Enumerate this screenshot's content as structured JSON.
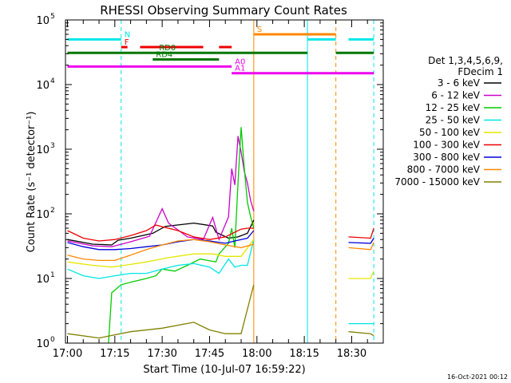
{
  "chart_data": {
    "type": "line",
    "title": "RHESSI Observing Summary Count Rates",
    "xlabel": "Start Time (10-Jul-07 16:59:22)",
    "ylabel": "Count Rate (s⁻¹ detector⁻¹)",
    "footer": "16-Oct-2021 00:12",
    "yscale": "log",
    "ylim": [
      1,
      100000
    ],
    "y_ticks": [
      {
        "value": 1,
        "base": "10",
        "exp": "0"
      },
      {
        "value": 10,
        "base": "10",
        "exp": "1"
      },
      {
        "value": 100,
        "base": "10",
        "exp": "2"
      },
      {
        "value": 1000,
        "base": "10",
        "exp": "3"
      },
      {
        "value": 10000,
        "base": "10",
        "exp": "4"
      },
      {
        "value": 100000,
        "base": "10",
        "exp": "5"
      }
    ],
    "xlim": [
      "17:00",
      "18:40"
    ],
    "x_ticks": [
      "17:00",
      "17:15",
      "17:30",
      "17:45",
      "18:00",
      "18:15",
      "18:30"
    ],
    "legend": {
      "placement": "right",
      "header": [
        "Det 1,3,4,5,6,9,",
        "FDecim 1"
      ]
    },
    "series": [
      {
        "name": "3 - 6 keV",
        "color": "#000000",
        "points": [
          [
            "17:00",
            40
          ],
          [
            "17:08",
            34
          ],
          [
            "17:14",
            33
          ],
          [
            "17:16",
            39
          ],
          [
            "17:20",
            42
          ],
          [
            "17:27",
            50
          ],
          [
            "17:31",
            64
          ],
          [
            "17:40",
            72
          ],
          [
            "17:46",
            65
          ],
          [
            "17:47",
            52
          ],
          [
            "17:51",
            42
          ],
          [
            "17:54",
            44
          ],
          [
            "17:57",
            50
          ],
          [
            "17:59",
            80
          ]
        ]
      },
      {
        "name": "6 - 12 keV",
        "color": "#cc00cc",
        "points": [
          [
            "17:00",
            38
          ],
          [
            "17:08",
            32
          ],
          [
            "17:14",
            31
          ],
          [
            "17:20",
            37
          ],
          [
            "17:26",
            45
          ],
          [
            "17:30",
            120
          ],
          [
            "17:32",
            72
          ],
          [
            "17:38",
            44
          ],
          [
            "17:43",
            40
          ],
          [
            "17:46",
            88
          ],
          [
            "17:48",
            40
          ],
          [
            "17:51",
            90
          ],
          [
            "17:52",
            500
          ],
          [
            "17:53",
            280
          ],
          [
            "17:54",
            1600
          ],
          [
            "17:55",
            900
          ],
          [
            "17:56",
            450
          ],
          [
            "17:57",
            300
          ],
          [
            "17:58",
            160
          ],
          [
            "17:59",
            110
          ]
        ]
      },
      {
        "name": "12 - 25 keV",
        "color": "#00cc00",
        "points": [
          [
            "17:13",
            1
          ],
          [
            "17:14",
            6
          ],
          [
            "17:17",
            8
          ],
          [
            "17:21",
            9
          ],
          [
            "17:25",
            10
          ],
          [
            "17:28",
            11
          ],
          [
            "17:30",
            14
          ],
          [
            "17:34",
            13
          ],
          [
            "17:38",
            16
          ],
          [
            "17:42",
            20
          ],
          [
            "17:47",
            18
          ],
          [
            "17:48",
            24
          ],
          [
            "17:51",
            35
          ],
          [
            "17:52",
            60
          ],
          [
            "17:53",
            30
          ],
          [
            "17:54",
            300
          ],
          [
            "17:55",
            2200
          ],
          [
            "17:56",
            500
          ],
          [
            "17:57",
            150
          ],
          [
            "17:58",
            90
          ],
          [
            "17:59",
            60
          ]
        ]
      },
      {
        "name": "25 - 50 keV",
        "color": "#00e6e6",
        "points": [
          [
            "17:00",
            14
          ],
          [
            "17:05",
            11
          ],
          [
            "17:10",
            10
          ],
          [
            "17:15",
            11
          ],
          [
            "17:20",
            12
          ],
          [
            "17:25",
            12
          ],
          [
            "17:30",
            14
          ],
          [
            "17:35",
            16
          ],
          [
            "17:40",
            17
          ],
          [
            "17:45",
            15
          ],
          [
            "17:48",
            12
          ],
          [
            "17:51",
            20
          ],
          [
            "17:53",
            15
          ],
          [
            "17:55",
            16
          ],
          [
            "17:57",
            16
          ],
          [
            "17:59",
            40
          ]
        ]
      },
      {
        "name": "50 - 100 keV",
        "color": "#e6e600",
        "points": [
          [
            "17:00",
            18
          ],
          [
            "17:08",
            16
          ],
          [
            "17:14",
            15
          ],
          [
            "17:18",
            16
          ],
          [
            "17:25",
            18
          ],
          [
            "17:32",
            21
          ],
          [
            "17:40",
            24
          ],
          [
            "17:46",
            24
          ],
          [
            "17:50",
            22
          ],
          [
            "17:55",
            22
          ],
          [
            "17:59",
            40
          ]
        ]
      },
      {
        "name": "100 - 300 keV",
        "color": "#ee0000",
        "points": [
          [
            "17:00",
            55
          ],
          [
            "17:05",
            42
          ],
          [
            "17:10",
            38
          ],
          [
            "17:15",
            40
          ],
          [
            "17:20",
            46
          ],
          [
            "17:25",
            55
          ],
          [
            "17:28",
            67
          ],
          [
            "17:35",
            55
          ],
          [
            "17:40",
            44
          ],
          [
            "17:45",
            40
          ],
          [
            "17:50",
            44
          ],
          [
            "17:53",
            52
          ],
          [
            "17:55",
            58
          ],
          [
            "17:57",
            60
          ],
          [
            "17:59",
            60
          ]
        ]
      },
      {
        "name": "300 - 800 keV",
        "color": "#0000dd",
        "points": [
          [
            "17:00",
            36
          ],
          [
            "17:05",
            31
          ],
          [
            "17:10",
            28
          ],
          [
            "17:15",
            28
          ],
          [
            "17:20",
            29
          ],
          [
            "17:25",
            31
          ],
          [
            "17:30",
            33
          ],
          [
            "17:35",
            37
          ],
          [
            "17:40",
            40
          ],
          [
            "17:45",
            38
          ],
          [
            "17:50",
            35
          ],
          [
            "17:53",
            38
          ],
          [
            "17:55",
            40
          ],
          [
            "17:57",
            42
          ],
          [
            "17:59",
            55
          ]
        ]
      },
      {
        "name": "800 - 7000 keV",
        "color": "#ff8800",
        "points": [
          [
            "17:00",
            23
          ],
          [
            "17:05",
            20
          ],
          [
            "17:10",
            19
          ],
          [
            "17:15",
            19
          ],
          [
            "17:20",
            23
          ],
          [
            "17:25",
            28
          ],
          [
            "17:30",
            33
          ],
          [
            "17:35",
            38
          ],
          [
            "17:40",
            40
          ],
          [
            "17:45",
            37
          ],
          [
            "17:50",
            33
          ],
          [
            "17:55",
            30
          ],
          [
            "17:59",
            34
          ]
        ]
      },
      {
        "name": "7000 - 15000 keV",
        "color": "#808000",
        "points": [
          [
            "17:00",
            1.4
          ],
          [
            "17:10",
            1.2
          ],
          [
            "17:20",
            1.5
          ],
          [
            "17:30",
            1.7
          ],
          [
            "17:40",
            2.1
          ],
          [
            "17:45",
            1.6
          ],
          [
            "17:50",
            1.4
          ],
          [
            "17:55",
            1.4
          ],
          [
            "17:59",
            8
          ]
        ]
      }
    ],
    "flag_bars": [
      {
        "label": "N",
        "color": "#00e6e6",
        "y": 50000,
        "segments": [
          [
            "17:00",
            "17:17"
          ],
          [
            "18:16",
            "18:25"
          ],
          [
            "18:29",
            "18:37"
          ]
        ],
        "label_at": "17:17"
      },
      {
        "label": "S",
        "color": "#ff8800",
        "y": 60000,
        "segments": [
          [
            "17:59",
            "18:25"
          ]
        ],
        "label_at": "17:59"
      },
      {
        "label": "F",
        "color": "#ee0000",
        "y": 38000,
        "segments": [
          [
            "17:17",
            "17:19"
          ],
          [
            "17:23",
            "17:43"
          ],
          [
            "17:48",
            "17:52"
          ]
        ],
        "label_at": "17:17"
      },
      {
        "label": "RD0",
        "color": "#007700",
        "y": 31000,
        "segments": [
          [
            "17:00",
            "18:16"
          ],
          [
            "18:25",
            "18:37"
          ]
        ],
        "label_at": "17:28"
      },
      {
        "label": "RD4",
        "color": "#007700",
        "y": 24500,
        "segments": [
          [
            "17:27",
            "17:48"
          ]
        ],
        "label_at": "17:27"
      },
      {
        "label": "A0",
        "color": "#ee00ee",
        "y": 19000,
        "segments": [
          [
            "17:00",
            "17:52"
          ]
        ],
        "label_at": "17:52"
      },
      {
        "label": "A1",
        "color": "#ee00ee",
        "y": 15000,
        "segments": [
          [
            "17:52",
            "18:37"
          ]
        ],
        "label_at": "17:52"
      }
    ],
    "vertical_markers": [
      {
        "time": "17:17",
        "color": "#00e6e6",
        "style": "dashed"
      },
      {
        "time": "17:59",
        "color": "#ff8800",
        "style": "solid"
      },
      {
        "time": "18:16",
        "color": "#00e6e6",
        "style": "solid"
      },
      {
        "time": "18:25",
        "color": "#ff8800",
        "style": "dashed"
      },
      {
        "time": "18:37",
        "color": "#00e6e6",
        "style": "dashed"
      }
    ],
    "segments_after_gap": [
      {
        "color": "#ee0000",
        "points": [
          [
            "18:29",
            44
          ],
          [
            "18:36",
            42
          ],
          [
            "18:37",
            60
          ]
        ]
      },
      {
        "color": "#0000dd",
        "points": [
          [
            "18:29",
            36
          ],
          [
            "18:36",
            35
          ],
          [
            "18:37",
            42
          ]
        ]
      },
      {
        "color": "#ff8800",
        "points": [
          [
            "18:29",
            30
          ],
          [
            "18:36",
            28
          ],
          [
            "18:37",
            36
          ]
        ]
      },
      {
        "color": "#e6e600",
        "points": [
          [
            "18:29",
            10
          ],
          [
            "18:36",
            10
          ],
          [
            "18:37",
            13
          ]
        ]
      },
      {
        "color": "#00e6e6",
        "points": [
          [
            "18:29",
            2
          ],
          [
            "18:36",
            2
          ],
          [
            "18:37",
            2
          ]
        ]
      },
      {
        "color": "#808000",
        "points": [
          [
            "18:29",
            1.5
          ],
          [
            "18:36",
            1.4
          ],
          [
            "18:37",
            1.3
          ]
        ]
      }
    ],
    "grid": false
  }
}
